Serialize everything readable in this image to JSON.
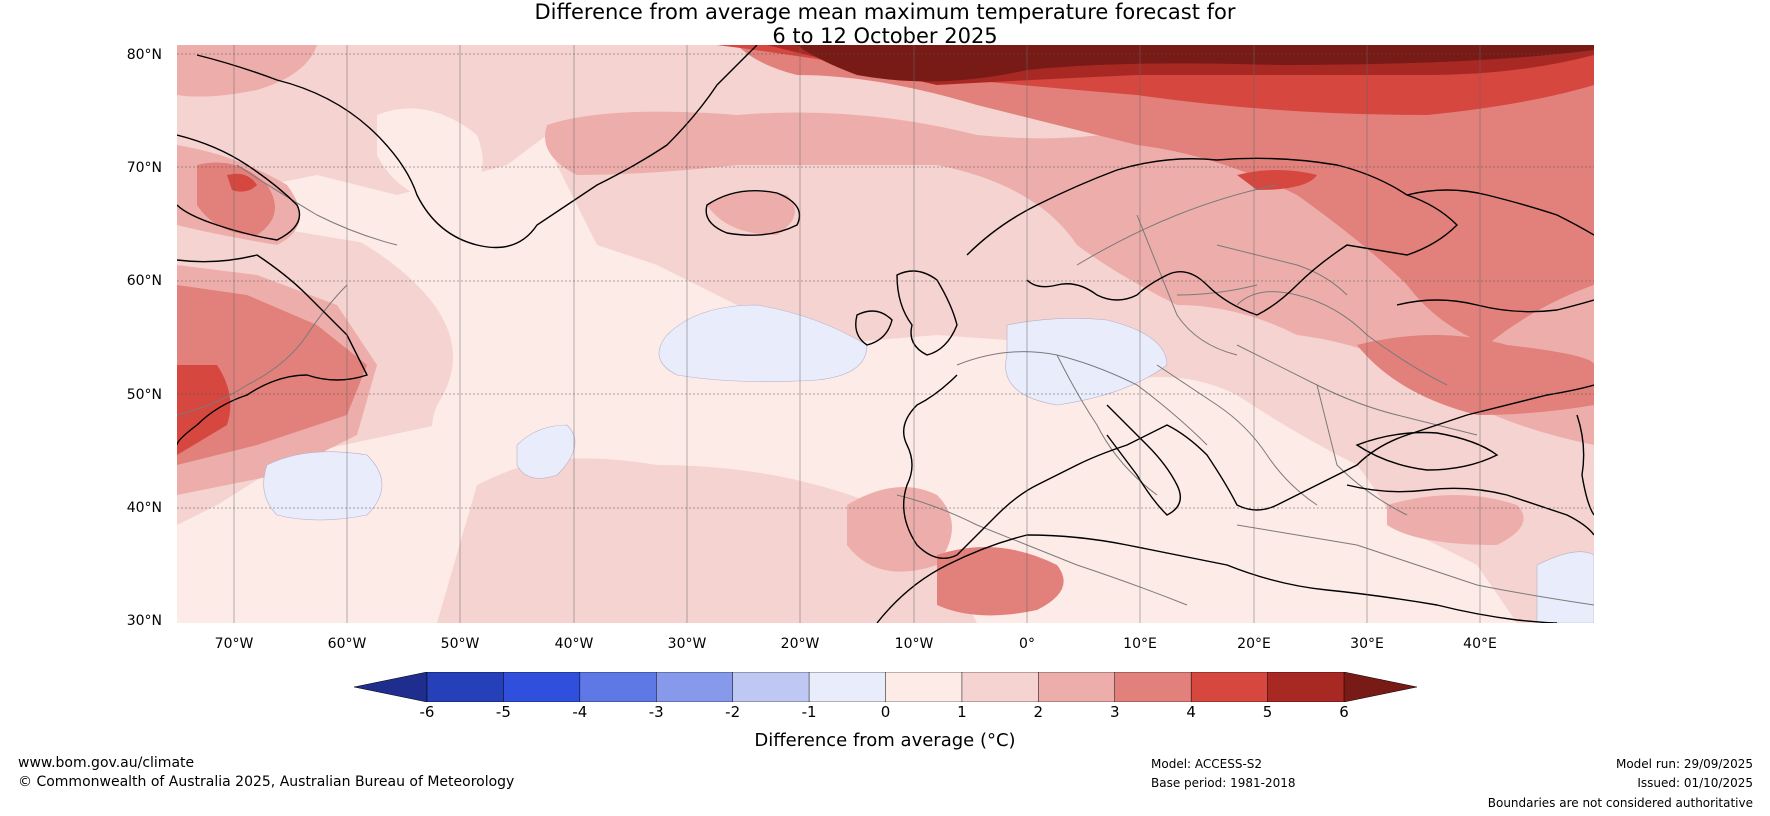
{
  "title": {
    "line1": "Difference from average mean maximum temperature forecast for",
    "line2": "6 to 12 October 2025"
  },
  "map": {
    "lat_labels": [
      "80°N",
      "70°N",
      "60°N",
      "50°N",
      "40°N",
      "30°N"
    ],
    "lon_labels": [
      "70°W",
      "60°W",
      "50°W",
      "40°W",
      "30°W",
      "20°W",
      "10°W",
      "0°",
      "10°E",
      "20°E",
      "30°E",
      "40°E"
    ]
  },
  "colorbar": {
    "ticks": [
      "-6",
      "-5",
      "-4",
      "-3",
      "-2",
      "-1",
      "0",
      "1",
      "2",
      "3",
      "4",
      "5",
      "6"
    ],
    "colors": [
      "#1f2d8f",
      "#2540b8",
      "#2f4fdc",
      "#5e78e6",
      "#8699ea",
      "#bfc8f2",
      "#e8ecfb",
      "#fdebe8",
      "#f5d3d0",
      "#edaeab",
      "#e2807b",
      "#d5473f",
      "#a82824",
      "#781a16"
    ],
    "label": "Difference from average (°C)"
  },
  "footer": {
    "website": "www.bom.gov.au/climate",
    "copyright": "© Commonwealth of Australia 2025, Australian Bureau of Meteorology",
    "model": "Model: ACCESS-S2",
    "base_period": "Base period: 1981-2018",
    "model_run": "Model run: 29/09/2025",
    "issued": "Issued: 01/10/2025",
    "disclaimer": "Boundaries are not considered authoritative"
  }
}
